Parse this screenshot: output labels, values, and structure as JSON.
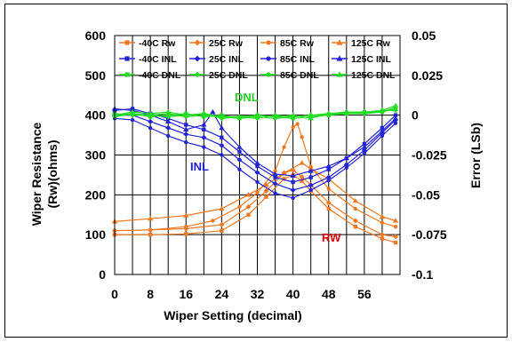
{
  "chart_data": {
    "type": "line",
    "xlabel": "Wiper Setting (decimal)",
    "ylabel_left": [
      "Wiper Resistance",
      "(Rw)(ohms)"
    ],
    "ylabel_right": "Error (LSb)",
    "x_ticks": [
      "0",
      "8",
      "16",
      "24",
      "32",
      "40",
      "48",
      "56"
    ],
    "y_left_ticks": [
      "0",
      "100",
      "200",
      "300",
      "400",
      "500",
      "600"
    ],
    "y_right_ticks": [
      "-0.1",
      "-0.075",
      "-0.05",
      "-0.025",
      "0",
      "0.025",
      "0.05"
    ],
    "xlim": [
      0,
      64
    ],
    "ylim_left": [
      0,
      600
    ],
    "ylim_right": [
      -0.1,
      0.05
    ],
    "grid": true,
    "legend_position": "top",
    "annotations": [
      {
        "text": "DNL",
        "color": "#22cc22"
      },
      {
        "text": "INL",
        "color": "#1f1fd6"
      },
      {
        "text": "RW",
        "color": "#e00000"
      }
    ],
    "colors": {
      "rw": "#f07820",
      "inl": "#2323d6",
      "dnl": "#22dd22",
      "rw_label": "#e00000"
    },
    "series": [
      {
        "name": "-40C Rw",
        "group": "rw",
        "marker": "square",
        "axis": "left",
        "x": [
          0,
          8,
          16,
          24,
          30,
          34,
          38,
          40,
          42,
          44,
          48,
          54,
          60,
          63
        ],
        "values": [
          100,
          100,
          102,
          110,
          150,
          195,
          240,
          250,
          235,
          210,
          165,
          120,
          90,
          80
        ]
      },
      {
        "name": "25C Rw",
        "group": "rw",
        "marker": "diamond",
        "axis": "left",
        "x": [
          0,
          8,
          16,
          24,
          30,
          34,
          38,
          40,
          42,
          44,
          48,
          54,
          60,
          63
        ],
        "values": [
          110,
          112,
          115,
          125,
          170,
          210,
          255,
          262,
          245,
          225,
          180,
          135,
          100,
          95
        ]
      },
      {
        "name": "85C Rw",
        "group": "rw",
        "marker": "circle",
        "axis": "left",
        "x": [
          0,
          8,
          16,
          22,
          28,
          32,
          36,
          38,
          40,
          41,
          42,
          44,
          48,
          54,
          60,
          63
        ],
        "values": [
          110,
          112,
          120,
          135,
          170,
          205,
          260,
          320,
          370,
          378,
          345,
          270,
          215,
          165,
          130,
          120
        ]
      },
      {
        "name": "125C Rw",
        "group": "rw",
        "marker": "triangle",
        "axis": "left",
        "x": [
          0,
          8,
          16,
          24,
          30,
          34,
          38,
          42,
          44,
          48,
          54,
          60,
          63
        ],
        "values": [
          133,
          140,
          148,
          165,
          200,
          225,
          255,
          280,
          265,
          240,
          185,
          145,
          135
        ]
      },
      {
        "name": "-40C INL",
        "group": "inl",
        "marker": "square",
        "axis": "right",
        "x": [
          0,
          4,
          8,
          12,
          16,
          20,
          24,
          28,
          32,
          36,
          40,
          44,
          48,
          52,
          56,
          60,
          63
        ],
        "values": [
          0.003,
          0.004,
          0.001,
          -0.002,
          -0.006,
          -0.009,
          -0.014,
          -0.023,
          -0.032,
          -0.039,
          -0.042,
          -0.039,
          -0.034,
          -0.027,
          -0.018,
          -0.008,
          0.0
        ]
      },
      {
        "name": "25C INL",
        "group": "inl",
        "marker": "diamond",
        "axis": "right",
        "x": [
          0,
          4,
          8,
          12,
          16,
          20,
          24,
          28,
          32,
          36,
          40,
          44,
          48,
          52,
          56,
          60,
          63
        ],
        "values": [
          0.0,
          0.0,
          -0.004,
          -0.008,
          -0.012,
          -0.014,
          -0.019,
          -0.028,
          -0.036,
          -0.043,
          -0.047,
          -0.044,
          -0.039,
          -0.031,
          -0.022,
          -0.011,
          -0.003
        ]
      },
      {
        "name": "85C INL",
        "group": "inl",
        "marker": "circle",
        "axis": "right",
        "x": [
          0,
          4,
          8,
          12,
          16,
          20,
          24,
          28,
          32,
          36,
          40,
          44,
          48,
          52,
          56,
          60,
          63
        ],
        "values": [
          -0.002,
          -0.003,
          -0.008,
          -0.013,
          -0.017,
          -0.02,
          -0.025,
          -0.034,
          -0.042,
          -0.049,
          -0.052,
          -0.047,
          -0.041,
          -0.033,
          -0.024,
          -0.013,
          -0.005
        ]
      },
      {
        "name": "125C INL",
        "group": "inl",
        "marker": "triangle",
        "axis": "right",
        "x": [
          0,
          4,
          8,
          12,
          16,
          20,
          22,
          24,
          28,
          32,
          36,
          40,
          44,
          48,
          52,
          56,
          60,
          63
        ],
        "values": [
          0.004,
          0.003,
          0.0,
          -0.004,
          -0.009,
          -0.006,
          0.002,
          -0.008,
          -0.02,
          -0.03,
          -0.037,
          -0.038,
          -0.035,
          -0.032,
          -0.027,
          -0.02,
          -0.01,
          -0.002
        ]
      },
      {
        "name": "-40C DNL",
        "group": "dnl",
        "marker": "square",
        "axis": "right",
        "x": [
          0,
          4,
          8,
          12,
          16,
          20,
          24,
          28,
          32,
          36,
          40,
          44,
          48,
          52,
          56,
          60,
          63
        ],
        "values": [
          0.0,
          0.001,
          -0.001,
          0.0,
          0.001,
          -0.001,
          0.0,
          -0.002,
          0.0,
          -0.001,
          -0.002,
          -0.001,
          0.0,
          0.001,
          0.002,
          0.002,
          0.004
        ]
      },
      {
        "name": "25C DNL",
        "group": "dnl",
        "marker": "diamond",
        "axis": "right",
        "x": [
          0,
          4,
          8,
          12,
          16,
          20,
          24,
          28,
          32,
          36,
          40,
          44,
          48,
          52,
          56,
          60,
          63
        ],
        "values": [
          0.001,
          0.0,
          0.0,
          -0.001,
          0.0,
          0.001,
          -0.002,
          -0.001,
          -0.002,
          0.0,
          -0.001,
          0.0,
          0.001,
          0.001,
          0.001,
          0.003,
          0.003
        ]
      },
      {
        "name": "85C DNL",
        "group": "dnl",
        "marker": "circle",
        "axis": "right",
        "x": [
          0,
          4,
          8,
          12,
          16,
          20,
          24,
          28,
          32,
          36,
          40,
          44,
          48,
          52,
          56,
          60,
          63
        ],
        "values": [
          -0.001,
          0.001,
          0.0,
          0.001,
          -0.001,
          0.0,
          -0.001,
          -0.002,
          -0.001,
          -0.002,
          -0.001,
          0.0,
          0.0,
          0.002,
          0.001,
          0.002,
          0.005
        ]
      },
      {
        "name": "125C DNL",
        "group": "dnl",
        "marker": "triangle",
        "axis": "right",
        "x": [
          0,
          4,
          8,
          12,
          16,
          20,
          24,
          28,
          32,
          36,
          40,
          44,
          48,
          52,
          56,
          60,
          63
        ],
        "values": [
          0.0,
          0.002,
          0.001,
          0.002,
          0.0,
          0.001,
          -0.001,
          -0.001,
          0.0,
          -0.001,
          0.0,
          -0.002,
          0.001,
          0.002,
          0.002,
          0.003,
          0.006
        ]
      }
    ]
  }
}
